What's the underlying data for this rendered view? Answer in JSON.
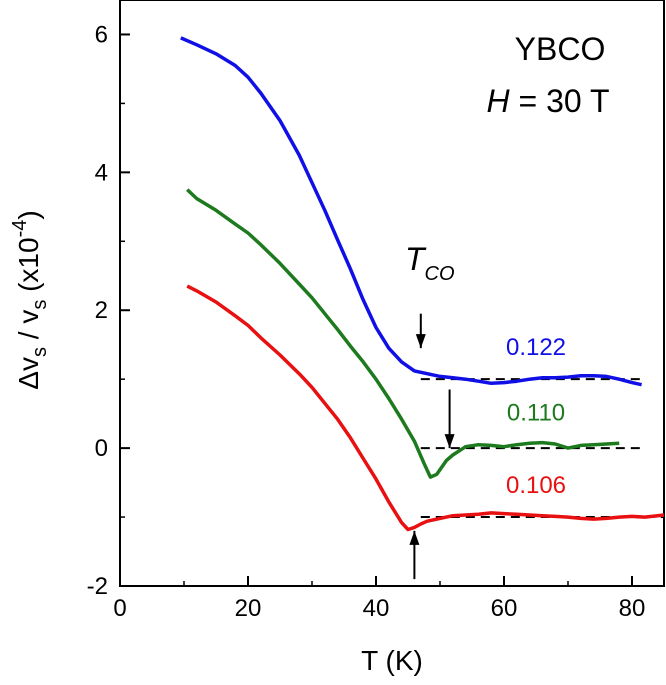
{
  "chart_data": {
    "type": "line",
    "xlabel": "T (K)",
    "ylabel_parts": {
      "delta": "Δv",
      "sub": "s",
      "slash": " / v",
      "sub2": "s",
      "paren": " (x10",
      "exp": "-4",
      "close": ")"
    },
    "xlim": [
      0,
      85
    ],
    "ylim": [
      -2,
      6.5
    ],
    "xticks": [
      0,
      20,
      40,
      60,
      80
    ],
    "yticks": [
      -2,
      0,
      2,
      4,
      6
    ],
    "xticks_labels": [
      "0",
      "20",
      "40",
      "60",
      "80"
    ],
    "yticks_labels": [
      "-2",
      "0",
      "2",
      "4",
      "6"
    ],
    "annotations": {
      "material": "YBCO",
      "field_symbol": "H",
      "field_value": " = 30 T",
      "tco_main": "T",
      "tco_sub": "CO"
    },
    "series": [
      {
        "name": "0.122",
        "color": "#1010e6",
        "baseline": 1.0,
        "points": [
          [
            9.5,
            5.95
          ],
          [
            12,
            5.85
          ],
          [
            15,
            5.72
          ],
          [
            18,
            5.55
          ],
          [
            20,
            5.38
          ],
          [
            22,
            5.15
          ],
          [
            25,
            4.75
          ],
          [
            28,
            4.25
          ],
          [
            30,
            3.85
          ],
          [
            32,
            3.45
          ],
          [
            34,
            3.02
          ],
          [
            36,
            2.6
          ],
          [
            38,
            2.15
          ],
          [
            40,
            1.75
          ],
          [
            42,
            1.45
          ],
          [
            44,
            1.25
          ],
          [
            46,
            1.12
          ],
          [
            48,
            1.08
          ],
          [
            50,
            1.04
          ],
          [
            52,
            1.02
          ],
          [
            54,
            1.0
          ],
          [
            56,
            0.97
          ],
          [
            58,
            0.94
          ],
          [
            60,
            0.95
          ],
          [
            62,
            0.97
          ],
          [
            64,
            1.0
          ],
          [
            66,
            1.02
          ],
          [
            68,
            1.02
          ],
          [
            70,
            1.03
          ],
          [
            72,
            1.05
          ],
          [
            74,
            1.05
          ],
          [
            76,
            1.04
          ],
          [
            78,
            1.0
          ],
          [
            80,
            0.95
          ],
          [
            81.5,
            0.92
          ]
        ]
      },
      {
        "name": "0.110",
        "color": "#1e7a1e",
        "baseline": 0.0,
        "points": [
          [
            10.5,
            3.75
          ],
          [
            12,
            3.62
          ],
          [
            15,
            3.45
          ],
          [
            18,
            3.25
          ],
          [
            20,
            3.12
          ],
          [
            22,
            2.95
          ],
          [
            25,
            2.68
          ],
          [
            28,
            2.38
          ],
          [
            30,
            2.18
          ],
          [
            32,
            1.95
          ],
          [
            34,
            1.72
          ],
          [
            36,
            1.48
          ],
          [
            38,
            1.25
          ],
          [
            40,
            1.0
          ],
          [
            42,
            0.72
          ],
          [
            44,
            0.42
          ],
          [
            46,
            0.1
          ],
          [
            47.5,
            -0.22
          ],
          [
            48.5,
            -0.42
          ],
          [
            49.5,
            -0.38
          ],
          [
            51,
            -0.18
          ],
          [
            52,
            -0.1
          ],
          [
            54,
            0.02
          ],
          [
            56,
            0.05
          ],
          [
            58,
            0.04
          ],
          [
            60,
            0.02
          ],
          [
            62,
            0.05
          ],
          [
            64,
            0.07
          ],
          [
            66,
            0.08
          ],
          [
            68,
            0.06
          ],
          [
            70,
            0.0
          ],
          [
            72,
            0.04
          ],
          [
            74,
            0.05
          ],
          [
            76,
            0.06
          ],
          [
            78,
            0.07
          ]
        ]
      },
      {
        "name": "0.106",
        "color": "#e81010",
        "baseline": -1.0,
        "points": [
          [
            10.5,
            2.35
          ],
          [
            12,
            2.28
          ],
          [
            15,
            2.12
          ],
          [
            18,
            1.92
          ],
          [
            20,
            1.78
          ],
          [
            22,
            1.6
          ],
          [
            25,
            1.35
          ],
          [
            28,
            1.08
          ],
          [
            30,
            0.88
          ],
          [
            32,
            0.65
          ],
          [
            34,
            0.42
          ],
          [
            36,
            0.15
          ],
          [
            38,
            -0.15
          ],
          [
            40,
            -0.45
          ],
          [
            42,
            -0.78
          ],
          [
            44,
            -1.08
          ],
          [
            45,
            -1.18
          ],
          [
            46,
            -1.15
          ],
          [
            47,
            -1.1
          ],
          [
            48,
            -1.06
          ],
          [
            50,
            -1.02
          ],
          [
            52,
            -0.98
          ],
          [
            54,
            -0.97
          ],
          [
            56,
            -0.96
          ],
          [
            58,
            -0.94
          ],
          [
            60,
            -0.95
          ],
          [
            62,
            -0.96
          ],
          [
            64,
            -0.97
          ],
          [
            66,
            -0.98
          ],
          [
            68,
            -0.99
          ],
          [
            70,
            -1.0
          ],
          [
            72,
            -1.02
          ],
          [
            74,
            -1.03
          ],
          [
            76,
            -1.02
          ],
          [
            78,
            -1.0
          ],
          [
            80,
            -0.99
          ],
          [
            82,
            -1.0
          ],
          [
            84,
            -0.98
          ],
          [
            85,
            -0.97
          ]
        ]
      }
    ],
    "baselines": [
      {
        "y": 1.0,
        "x_start": 47,
        "x_end": 82
      },
      {
        "y": 0.0,
        "x_start": 47,
        "x_end": 82
      },
      {
        "y": -1.0,
        "x_start": 47,
        "x_end": 85
      }
    ],
    "arrows": [
      {
        "x": 47,
        "y_from": 1.95,
        "y_to": 1.45,
        "direction": "down"
      },
      {
        "x": 51.5,
        "y_from": 0.85,
        "y_to": 0.0,
        "direction": "down"
      },
      {
        "x": 46,
        "y_from": -1.9,
        "y_to": -1.2,
        "direction": "up"
      }
    ],
    "series_label_positions": [
      {
        "x": 65,
        "y": 1.35
      },
      {
        "x": 65,
        "y": 0.4
      },
      {
        "x": 65,
        "y": -0.65
      }
    ]
  }
}
